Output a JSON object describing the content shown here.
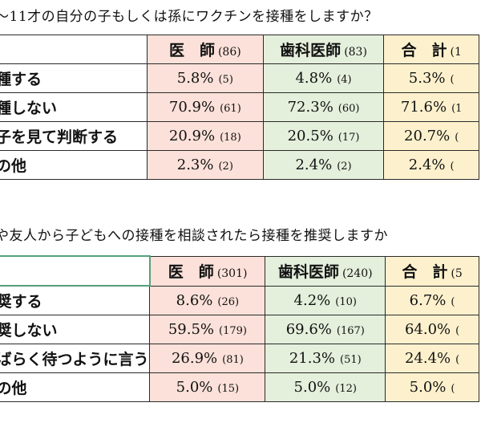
{
  "q1": {
    "text": "～11才の自分の子もしくは孫にワクチンを接種をしますか？"
  },
  "q2": {
    "text": "や友人から子どもへの接種を相談されたら接種を推奨しますか"
  },
  "table1": {
    "headers": [
      {
        "label": "医　師",
        "count": "(86)"
      },
      {
        "label": "歯科医師",
        "count": "(83)"
      },
      {
        "label": "合　計",
        "count": "(1"
      }
    ],
    "rows": [
      {
        "label": "種する",
        "cells": [
          {
            "pct": "5.8%",
            "n": "(5)"
          },
          {
            "pct": "4.8%",
            "n": "(4)"
          },
          {
            "pct": "5.3%",
            "n": "("
          }
        ]
      },
      {
        "label": "種しない",
        "cells": [
          {
            "pct": "70.9%",
            "n": "(61)"
          },
          {
            "pct": "72.3%",
            "n": "(60)"
          },
          {
            "pct": "71.6%",
            "n": "(1"
          }
        ]
      },
      {
        "label": "子を見て判断する",
        "cells": [
          {
            "pct": "20.9%",
            "n": "(18)"
          },
          {
            "pct": "20.5%",
            "n": "(17)"
          },
          {
            "pct": "20.7%",
            "n": "("
          }
        ]
      },
      {
        "label": "の他",
        "cells": [
          {
            "pct": "2.3%",
            "n": "(2)"
          },
          {
            "pct": "2.4%",
            "n": "(2)"
          },
          {
            "pct": "2.4%",
            "n": "("
          }
        ]
      }
    ]
  },
  "table2": {
    "headers": [
      {
        "label": "医　師",
        "count": "(301)"
      },
      {
        "label": "歯科医師",
        "count": "(240)"
      },
      {
        "label": "合　計",
        "count": "(5"
      }
    ],
    "rows": [
      {
        "label": "奨する",
        "cells": [
          {
            "pct": "8.6%",
            "n": "(26)"
          },
          {
            "pct": "4.2%",
            "n": "(10)"
          },
          {
            "pct": "6.7%",
            "n": "("
          }
        ]
      },
      {
        "label": "奨しない",
        "cells": [
          {
            "pct": "59.5%",
            "n": "(179)"
          },
          {
            "pct": "69.6%",
            "n": "(167)"
          },
          {
            "pct": "64.0%",
            "n": "("
          }
        ]
      },
      {
        "label": "ばらく待つように言う",
        "cells": [
          {
            "pct": "26.9%",
            "n": "(81)"
          },
          {
            "pct": "21.3%",
            "n": "(51)"
          },
          {
            "pct": "24.4%",
            "n": "("
          }
        ]
      },
      {
        "label": "の他",
        "cells": [
          {
            "pct": "5.0%",
            "n": "(15)"
          },
          {
            "pct": "5.0%",
            "n": "(12)"
          },
          {
            "pct": "5.0%",
            "n": "("
          }
        ]
      }
    ]
  }
}
